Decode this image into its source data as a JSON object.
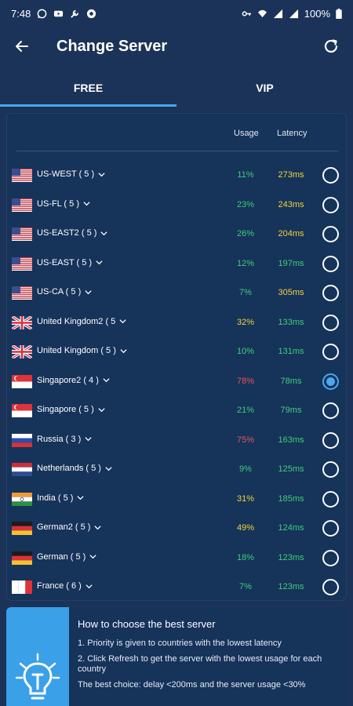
{
  "status_bar": {
    "time": "7:48",
    "battery": "100%"
  },
  "app_bar": {
    "title": "Change Server"
  },
  "tabs": [
    {
      "label": "FREE",
      "active": true
    },
    {
      "label": "VIP",
      "active": false
    }
  ],
  "list_header": {
    "usage": "Usage",
    "latency": "Latency"
  },
  "colors": {
    "background": "#1b3358",
    "accent": "#4aa8ee",
    "green": "#3ecf7a",
    "yellow": "#f2d33c",
    "red": "#e8555e"
  },
  "servers": [
    {
      "name": "US-WEST ( 5 )",
      "flag": "us-flag",
      "usage": "11%",
      "usage_color": "green",
      "latency": "273ms",
      "latency_color": "yellow",
      "selected": false
    },
    {
      "name": "US-FL ( 5 )",
      "flag": "us-flag",
      "usage": "23%",
      "usage_color": "green",
      "latency": "243ms",
      "latency_color": "yellow",
      "selected": false
    },
    {
      "name": "US-EAST2 ( 5 )",
      "flag": "us-flag",
      "usage": "26%",
      "usage_color": "green",
      "latency": "204ms",
      "latency_color": "yellow",
      "selected": false
    },
    {
      "name": "US-EAST ( 5 )",
      "flag": "us-flag",
      "usage": "12%",
      "usage_color": "green",
      "latency": "197ms",
      "latency_color": "green",
      "selected": false
    },
    {
      "name": "US-CA ( 5 )",
      "flag": "us-flag",
      "usage": "7%",
      "usage_color": "green",
      "latency": "305ms",
      "latency_color": "yellow",
      "selected": false
    },
    {
      "name": "United Kingdom2 ( 5",
      "flag": "uk-flag",
      "usage": "32%",
      "usage_color": "yellow",
      "latency": "133ms",
      "latency_color": "green",
      "selected": false
    },
    {
      "name": "United Kingdom ( 5 )",
      "flag": "uk-flag",
      "usage": "10%",
      "usage_color": "green",
      "latency": "131ms",
      "latency_color": "green",
      "selected": false
    },
    {
      "name": "Singapore2 ( 4 )",
      "flag": "sg-flag",
      "usage": "78%",
      "usage_color": "red",
      "latency": "78ms",
      "latency_color": "green",
      "selected": true
    },
    {
      "name": "Singapore ( 5 )",
      "flag": "sg-flag",
      "usage": "21%",
      "usage_color": "green",
      "latency": "79ms",
      "latency_color": "green",
      "selected": false
    },
    {
      "name": "Russia ( 3 )",
      "flag": "ru-flag",
      "usage": "75%",
      "usage_color": "red",
      "latency": "163ms",
      "latency_color": "green",
      "selected": false
    },
    {
      "name": "Netherlands ( 5 )",
      "flag": "nl-flag",
      "usage": "9%",
      "usage_color": "green",
      "latency": "125ms",
      "latency_color": "green",
      "selected": false
    },
    {
      "name": "India ( 5 )",
      "flag": "in-flag",
      "usage": "31%",
      "usage_color": "yellow",
      "latency": "185ms",
      "latency_color": "green",
      "selected": false
    },
    {
      "name": "German2 ( 5 )",
      "flag": "de-flag",
      "usage": "49%",
      "usage_color": "yellow",
      "latency": "124ms",
      "latency_color": "green",
      "selected": false
    },
    {
      "name": "German ( 5 )",
      "flag": "de-flag",
      "usage": "18%",
      "usage_color": "green",
      "latency": "123ms",
      "latency_color": "green",
      "selected": false
    },
    {
      "name": "France ( 6 )",
      "flag": "fr-flag",
      "usage": "7%",
      "usage_color": "green",
      "latency": "123ms",
      "latency_color": "green",
      "selected": false
    }
  ],
  "help": {
    "icon": "lightbulb-icon",
    "title": "How to choose the best server",
    "lines": [
      "1. Priority is given to countries with the lowest latency",
      "2. Click Refresh to get the server with the lowest usage for each country",
      "The best choice: delay <200ms and the server usage <30%"
    ]
  }
}
